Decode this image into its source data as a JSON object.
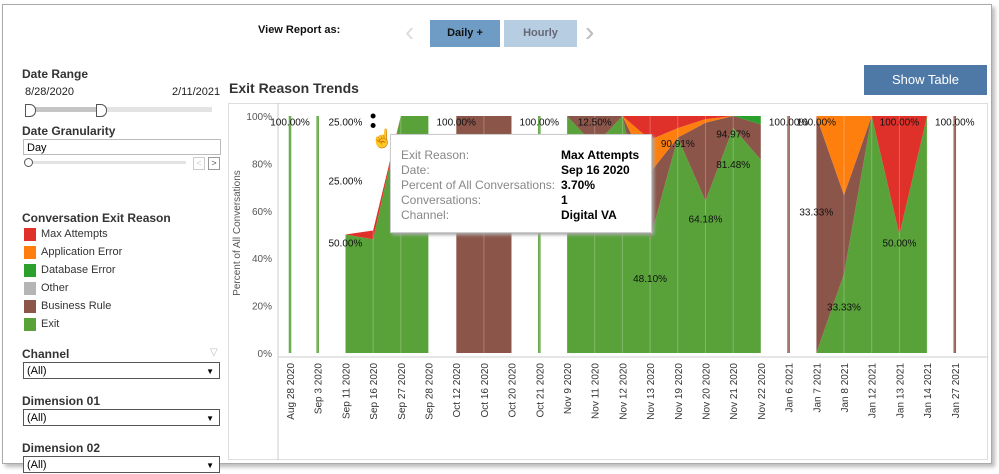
{
  "header": {
    "view_label": "View Report as:",
    "daily": "Daily +",
    "hourly": "Hourly",
    "show_table": "Show Table"
  },
  "filters": {
    "date_range": {
      "label": "Date Range",
      "start": "8/28/2020",
      "end": "2/11/2021"
    },
    "granularity": {
      "label": "Date Granularity",
      "value": "Day"
    },
    "legend_title": "Conversation Exit Reason",
    "channel": {
      "label": "Channel",
      "value": "(All)"
    },
    "dim1": {
      "label": "Dimension 01",
      "value": "(All)"
    },
    "dim2": {
      "label": "Dimension 02",
      "value": "(All)"
    }
  },
  "tooltip": {
    "rows": [
      {
        "k": "Exit Reason:",
        "v": "Max Attempts"
      },
      {
        "k": "Date:",
        "v": "Sep 16 2020"
      },
      {
        "k": "Percent of All Conversations:",
        "v": "3.70%"
      },
      {
        "k": "Conversations:",
        "v": "1"
      },
      {
        "k": "Channel:",
        "v": "Digital VA"
      }
    ]
  },
  "chart_data": {
    "type": "area",
    "title": "Exit Reason Trends",
    "ylabel": "Percent of All Conversations",
    "ylim": [
      0,
      100
    ],
    "yticks": [
      "0%",
      "20%",
      "40%",
      "60%",
      "80%",
      "100%"
    ],
    "legend_placement": "left",
    "categories": [
      "Aug 28 2020",
      "Sep 3 2020",
      "Sep 11 2020",
      "Sep 16 2020",
      "Sep 27 2020",
      "Sep 28 2020",
      "Oct 12 2020",
      "Oct 16 2020",
      "Oct 20 2020",
      "Oct 21 2020",
      "Nov 9 2020",
      "Nov 11 2020",
      "Nov 12 2020",
      "Nov 13 2020",
      "Nov 19 2020",
      "Nov 20 2020",
      "Nov 21 2020",
      "Nov 22 2020",
      "Jan 6 2021",
      "Jan 7 2021",
      "Jan 8 2021",
      "Jan 12 2021",
      "Jan 13 2021",
      "Jan 14 2021",
      "Jan 27 2021"
    ],
    "series": [
      {
        "name": "Exit",
        "color": "#59a23a",
        "values": [
          100,
          100,
          50,
          48,
          100,
          100,
          0,
          0,
          0,
          100,
          100,
          87.5,
          100,
          48.1,
          90.91,
          64.18,
          94.97,
          81.48,
          0,
          0,
          33.33,
          100,
          50,
          100,
          0
        ]
      },
      {
        "name": "Business Rule",
        "color": "#8b5549",
        "values": [
          0,
          0,
          0,
          0,
          0,
          0,
          100,
          100,
          100,
          0,
          0,
          12.5,
          0,
          28,
          0,
          33,
          5.03,
          15,
          100,
          100,
          33.33,
          0,
          0,
          0,
          100
        ]
      },
      {
        "name": "Database Error",
        "color": "#2ca02c",
        "values": [
          0,
          0,
          0,
          0,
          0,
          0,
          0,
          0,
          0,
          0,
          0,
          0,
          0,
          0,
          0,
          0,
          0,
          3.52,
          0,
          0,
          0,
          0,
          0,
          0,
          0
        ]
      },
      {
        "name": "Application Error",
        "color": "#ff7f0e",
        "values": [
          0,
          0,
          0,
          0,
          0,
          0,
          0,
          0,
          0,
          0,
          0,
          0,
          0,
          13.9,
          4,
          1.5,
          0,
          0,
          0,
          0,
          33.34,
          0,
          0,
          0,
          0
        ]
      },
      {
        "name": "Max Attempts",
        "color": "#e0302a",
        "values": [
          0,
          0,
          0,
          3.7,
          0,
          0,
          0,
          0,
          0,
          0,
          0,
          0,
          0,
          10,
          5.09,
          1.32,
          0,
          0,
          0,
          0,
          0,
          0,
          50,
          0,
          0
        ]
      },
      {
        "name": "Other",
        "color": "#b5b5b5",
        "values": [
          0,
          0,
          0,
          0,
          0,
          0,
          0,
          0,
          0,
          0,
          0,
          0,
          0,
          0,
          0,
          0,
          0,
          0,
          0,
          0,
          0,
          0,
          0,
          0,
          0
        ]
      }
    ],
    "labels": [
      {
        "i": 0,
        "y": 96,
        "text": "100.00%"
      },
      {
        "i": 2,
        "y": 96,
        "text": "25.00%"
      },
      {
        "i": 2,
        "y": 71,
        "text": "25.00%"
      },
      {
        "i": 2,
        "y": 45,
        "text": "50.00%"
      },
      {
        "i": 6,
        "y": 96,
        "text": "100.00%"
      },
      {
        "i": 9,
        "y": 96,
        "text": "100.00%"
      },
      {
        "i": 11,
        "y": 96,
        "text": "12.50%"
      },
      {
        "i": 13,
        "y": 30,
        "text": "48.10%"
      },
      {
        "i": 14,
        "y": 87,
        "text": "90.91%"
      },
      {
        "i": 15,
        "y": 55,
        "text": "64.18%"
      },
      {
        "i": 16,
        "y": 91,
        "text": "94.97%"
      },
      {
        "i": 16,
        "y": 78,
        "text": "81.48%"
      },
      {
        "i": 18,
        "y": 96,
        "text": "100.00%"
      },
      {
        "i": 19,
        "y": 96,
        "text": "100.00%"
      },
      {
        "i": 19,
        "y": 58,
        "text": "33.33%"
      },
      {
        "i": 20,
        "y": 18,
        "text": "33.33%"
      },
      {
        "i": 22,
        "y": 96,
        "text": "100.00%"
      },
      {
        "i": 22,
        "y": 45,
        "text": "50.00%"
      },
      {
        "i": 24,
        "y": 96,
        "text": "100.00%"
      }
    ]
  }
}
